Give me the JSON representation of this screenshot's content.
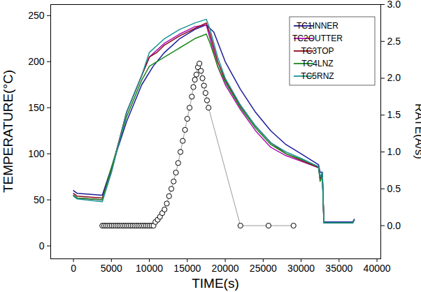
{
  "chart_data": {
    "type": "line",
    "x_label": "TIME(s)",
    "y_label": "TEMPERATURE(°C)",
    "y2_label": "RATE(A/s)",
    "xlim": [
      -3000,
      40500
    ],
    "xticks": [
      0,
      5000,
      10000,
      15000,
      20000,
      25000,
      30000,
      35000,
      40000
    ],
    "ylim": [
      -14,
      262
    ],
    "yticks": [
      0,
      50,
      100,
      150,
      200,
      250
    ],
    "y2lim": [
      -0.45,
      3.0
    ],
    "y2ticks": [
      {
        "value": 0,
        "label": "0.0"
      },
      {
        "value": 0.5,
        "label": "0.5"
      },
      {
        "value": 1,
        "label": "1.0"
      },
      {
        "value": 1.5,
        "label": "1.5"
      },
      {
        "value": 2,
        "label": "2.0"
      },
      {
        "value": 2.5,
        "label": "2.5"
      },
      {
        "value": 3,
        "label": "3.0"
      }
    ],
    "legend": "upper right",
    "series": [
      {
        "name": "TC1INNER",
        "color": "#1c1c9c",
        "x": [
          0,
          500,
          3800,
          5000,
          7000,
          9000,
          10500,
          12000,
          14000,
          16000,
          17500,
          18500,
          20000,
          22000,
          24000,
          26000,
          28000,
          30000,
          32300,
          32500,
          32800,
          33000,
          36800,
          37000
        ],
        "values": [
          60,
          57,
          55,
          85,
          135,
          175,
          195,
          210,
          225,
          235,
          240,
          232,
          200,
          170,
          145,
          125,
          110,
          100,
          88,
          80,
          80,
          26,
          26,
          29
        ]
      },
      {
        "name": "TC2OUTTER",
        "color": "#b010b0",
        "x": [
          0,
          500,
          3800,
          5000,
          7000,
          9000,
          10000,
          12000,
          14000,
          16000,
          17500,
          18000,
          19000,
          20000,
          22000,
          24000,
          26000,
          28000,
          30000,
          32300,
          32500,
          32800,
          33000,
          36800,
          37000
        ],
        "values": [
          55,
          52,
          50,
          80,
          145,
          185,
          205,
          220,
          230,
          238,
          240,
          225,
          195,
          175,
          148,
          125,
          107,
          98,
          92,
          85,
          72,
          78,
          25,
          25,
          28
        ]
      },
      {
        "name": "TC3TOP",
        "color": "#8b0a1a",
        "x": [
          0,
          500,
          3800,
          5000,
          7000,
          9000,
          10000,
          11000,
          12000,
          14000,
          16000,
          17500,
          18000,
          19000,
          20000,
          22000,
          24000,
          26000,
          28000,
          30000,
          32300,
          32500,
          32800,
          33000,
          36800,
          37000
        ],
        "values": [
          57,
          54,
          52,
          83,
          145,
          185,
          205,
          210,
          218,
          228,
          236,
          242,
          230,
          200,
          180,
          152,
          130,
          112,
          100,
          93,
          85,
          74,
          79,
          25,
          25,
          28
        ]
      },
      {
        "name": "TC4LNZ",
        "color": "#1a8a1a",
        "x": [
          0,
          500,
          3800,
          5000,
          7000,
          9000,
          10000,
          12000,
          14000,
          16000,
          17500,
          18000,
          19000,
          20000,
          22000,
          24000,
          26000,
          28000,
          30000,
          32300,
          32500,
          32800,
          33000,
          36800,
          37000
        ],
        "values": [
          55,
          52,
          50,
          85,
          140,
          180,
          195,
          205,
          215,
          225,
          230,
          220,
          195,
          178,
          150,
          128,
          110,
          100,
          94,
          86,
          70,
          76,
          25,
          25,
          28
        ]
      },
      {
        "name": "TC5RNZ",
        "color": "#1a9494",
        "x": [
          0,
          500,
          3800,
          5000,
          7000,
          9000,
          10000,
          12000,
          14000,
          16000,
          17500,
          18000,
          19000,
          20000,
          22000,
          24000,
          26000,
          28000,
          30000,
          32300,
          32500,
          32800,
          33000,
          36800,
          37000
        ],
        "values": [
          54,
          51,
          48,
          80,
          145,
          185,
          210,
          225,
          235,
          242,
          246,
          235,
          205,
          182,
          153,
          130,
          112,
          102,
          95,
          86,
          75,
          80,
          25,
          25,
          28
        ]
      },
      {
        "type": "scatter",
        "axis": "y2",
        "color": "#000000",
        "marker": "circle",
        "x": [
          3800,
          4050,
          4300,
          4550,
          4800,
          5050,
          5300,
          5550,
          5800,
          6050,
          6300,
          6550,
          6800,
          7050,
          7300,
          7550,
          7800,
          8050,
          8300,
          8550,
          8800,
          9050,
          9300,
          9550,
          9800,
          10050,
          10300,
          10550,
          10800,
          11100,
          11400,
          11700,
          12000,
          12300,
          12600,
          12900,
          13200,
          13500,
          13800,
          14100,
          14400,
          14700,
          15000,
          15300,
          15600,
          15800,
          16000,
          16200,
          16400,
          16600,
          16800,
          17000,
          17200,
          17400,
          17600,
          17800,
          22000,
          25700,
          29000
        ],
        "values": [
          0,
          0,
          0,
          0,
          0,
          0,
          0,
          0,
          0,
          0,
          0,
          0,
          0,
          0,
          0,
          0,
          0,
          0,
          0,
          0,
          0,
          0,
          0,
          0,
          0,
          0,
          0,
          0,
          0.05,
          0.08,
          0.12,
          0.17,
          0.22,
          0.3,
          0.4,
          0.5,
          0.6,
          0.72,
          0.85,
          1.0,
          1.15,
          1.3,
          1.45,
          1.6,
          1.75,
          1.88,
          1.98,
          2.05,
          2.15,
          2.2,
          2.1,
          2.0,
          1.9,
          1.8,
          1.7,
          1.6,
          0,
          0,
          0
        ]
      }
    ]
  }
}
